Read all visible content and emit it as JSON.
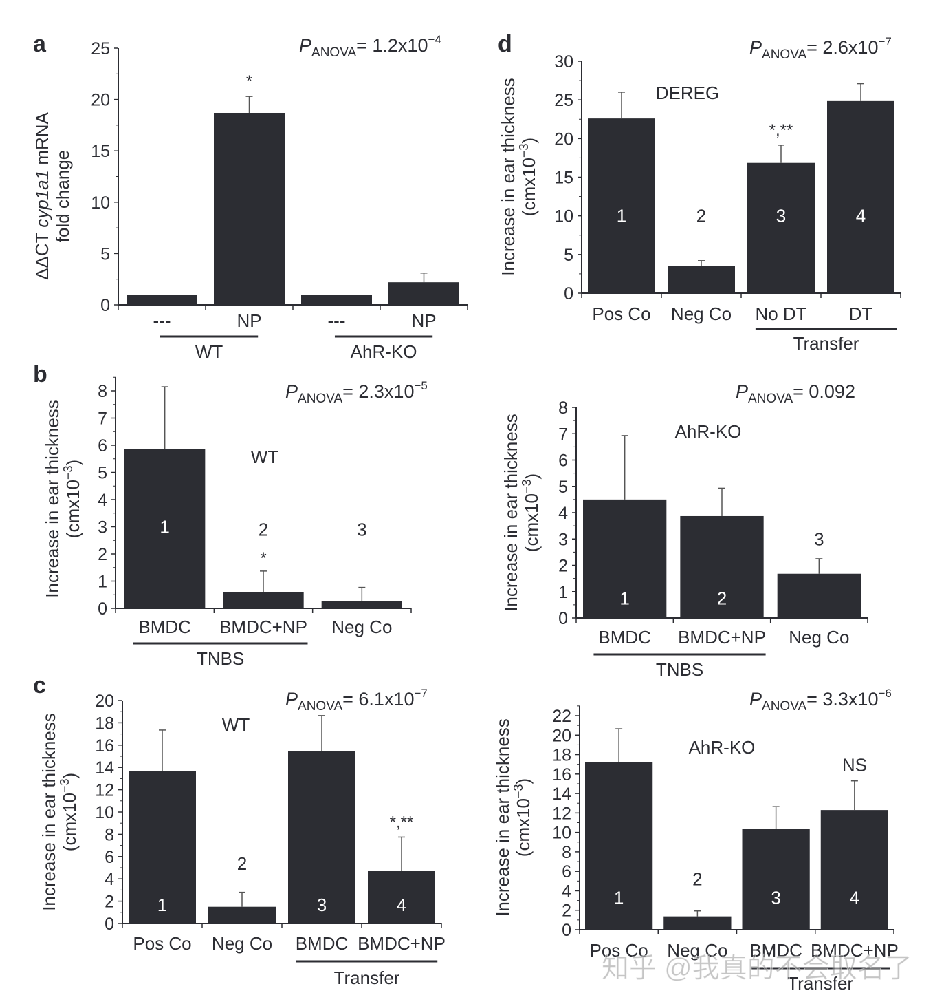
{
  "colors": {
    "bar": "#2c2d33",
    "axis": "#2c2d33",
    "error_bar": "#555555",
    "text": "#2c2d33"
  },
  "watermark": "知乎 @我真的不会取名了",
  "chart_data": [
    {
      "id": "a",
      "panel_letter": "a",
      "type": "bar",
      "title": "",
      "pvalue": {
        "prefix": "P",
        "subscript": "ANOVA",
        "text": "= 1.2x10",
        "exponent": "−4"
      },
      "ylabel_lines": [
        "ΔΔCT cyp1a1 mRNA",
        "fold change"
      ],
      "ylabel_parts": [
        {
          "text": "ΔΔCT ",
          "italic": false
        },
        {
          "text": "cyp1a1",
          "italic": true
        },
        {
          "text": " mRNA",
          "italic": false
        }
      ],
      "ylim": [
        0,
        25
      ],
      "yticks": [
        0,
        5,
        10,
        15,
        20,
        25
      ],
      "yminor": 2.5,
      "categories": [
        "---",
        "NP",
        "---",
        "NP"
      ],
      "values": [
        1.0,
        18.7,
        1.0,
        2.2
      ],
      "error_upper": [
        1.0,
        20.3,
        1.0,
        3.1
      ],
      "bar_numbers": [],
      "bar_annotations": [
        null,
        "*",
        null,
        null
      ],
      "groups": [
        {
          "label": "WT",
          "from": 0,
          "to": 1
        },
        {
          "label": "AhR-KO",
          "from": 2,
          "to": 3
        }
      ],
      "inner_label": ""
    },
    {
      "id": "b",
      "panel_letter": "b",
      "type": "bar",
      "pvalue": {
        "prefix": "P",
        "subscript": "ANOVA",
        "text": "= 2.3x10",
        "exponent": "−5"
      },
      "ylabel_lines": [
        "Increase in ear thickness",
        "(cmx10−3)"
      ],
      "ylim": [
        0,
        8.5
      ],
      "yticks": [
        0,
        1,
        2,
        3,
        4,
        5,
        6,
        7,
        8
      ],
      "yminor": 0.5,
      "categories": [
        "BMDC",
        "BMDC+NP",
        "Neg Co"
      ],
      "values": [
        5.85,
        0.6,
        0.27
      ],
      "error_upper": [
        8.15,
        1.37,
        0.77
      ],
      "bar_numbers": [
        "1",
        "2",
        "3"
      ],
      "bar_annotations": [
        null,
        "*",
        null
      ],
      "groups": [
        {
          "label": "TNBS",
          "from": 0,
          "to": 1
        }
      ],
      "inner_label": "WT"
    },
    {
      "id": "c",
      "panel_letter": "c",
      "type": "bar",
      "pvalue": {
        "prefix": "P",
        "subscript": "ANOVA",
        "text": "= 6.1x10",
        "exponent": "−7"
      },
      "ylabel_lines": [
        "Increase in ear thickness",
        "(cmx10−3)"
      ],
      "ylim": [
        0,
        20
      ],
      "yticks": [
        0,
        2,
        4,
        6,
        8,
        10,
        12,
        14,
        16,
        18,
        20
      ],
      "yminor": 1,
      "categories": [
        "Pos Co",
        "Neg Co",
        "BMDC",
        "BMDC+NP"
      ],
      "values": [
        13.7,
        1.5,
        15.45,
        4.7
      ],
      "error_upper": [
        17.35,
        2.8,
        18.65,
        7.75
      ],
      "bar_numbers": [
        "1",
        "2",
        "3",
        "4"
      ],
      "bar_annotations": [
        null,
        null,
        null,
        "*,**"
      ],
      "groups": [
        {
          "label": "Transfer",
          "from": 2,
          "to": 3
        }
      ],
      "inner_label": "WT"
    },
    {
      "id": "d",
      "panel_letter": "d",
      "type": "bar",
      "pvalue": {
        "prefix": "P",
        "subscript": "ANOVA",
        "text": "= 2.6x10",
        "exponent": "−7"
      },
      "ylabel_lines": [
        "Increase in ear thickness",
        "(cmx10−3)"
      ],
      "ylim": [
        0,
        30
      ],
      "yticks": [
        0,
        5,
        10,
        15,
        20,
        25,
        30
      ],
      "yminor": 2.5,
      "categories": [
        "Pos Co",
        "Neg Co",
        "No DT",
        "DT"
      ],
      "values": [
        22.6,
        3.55,
        16.85,
        24.85
      ],
      "error_upper": [
        26.0,
        4.2,
        19.15,
        27.1
      ],
      "bar_numbers": [
        "1",
        "2",
        "3",
        "4"
      ],
      "bar_annotations": [
        null,
        null,
        "*,**",
        null
      ],
      "groups": [
        {
          "label": "Transfer",
          "from": 2,
          "to": 3
        }
      ],
      "inner_label": "DEREG"
    },
    {
      "id": "e",
      "panel_letter": "",
      "type": "bar",
      "pvalue": {
        "prefix": "P",
        "subscript": "ANOVA",
        "text": "= 0.092",
        "exponent": ""
      },
      "ylabel_lines": [
        "Increase in ear thickness",
        "(cmx10−3)"
      ],
      "ylim": [
        0,
        8
      ],
      "yticks": [
        0,
        1,
        2,
        3,
        4,
        5,
        6,
        7,
        8
      ],
      "yminor": 0.5,
      "categories": [
        "BMDC",
        "BMDC+NP",
        "Neg Co"
      ],
      "values": [
        4.5,
        3.87,
        1.68
      ],
      "error_upper": [
        6.93,
        4.93,
        2.25
      ],
      "bar_numbers": [
        "1",
        "2",
        "3"
      ],
      "bar_annotations": [
        null,
        null,
        null
      ],
      "groups": [
        {
          "label": "TNBS",
          "from": 0,
          "to": 1
        }
      ],
      "inner_label": "AhR-KO"
    },
    {
      "id": "f",
      "panel_letter": "",
      "type": "bar",
      "pvalue": {
        "prefix": "P",
        "subscript": "ANOVA",
        "text": "= 3.3x10",
        "exponent": "−6"
      },
      "ylabel_lines": [
        "Increase in ear thickness",
        "(cmx10−3)"
      ],
      "ylim": [
        0,
        23
      ],
      "yticks": [
        0,
        2,
        4,
        6,
        8,
        10,
        12,
        14,
        16,
        18,
        20,
        22
      ],
      "yminor": 1,
      "categories": [
        "Pos Co",
        "Neg Co",
        "BMDC",
        "BMDC+NP"
      ],
      "values": [
        17.2,
        1.37,
        10.35,
        12.3
      ],
      "error_upper": [
        20.65,
        1.93,
        12.65,
        15.3
      ],
      "bar_numbers": [
        "1",
        "2",
        "3",
        "4"
      ],
      "bar_annotations": [
        null,
        null,
        null,
        "NS"
      ],
      "groups": [
        {
          "label": "Transfer",
          "from": 2,
          "to": 3
        }
      ],
      "inner_label": "AhR-KO"
    }
  ]
}
